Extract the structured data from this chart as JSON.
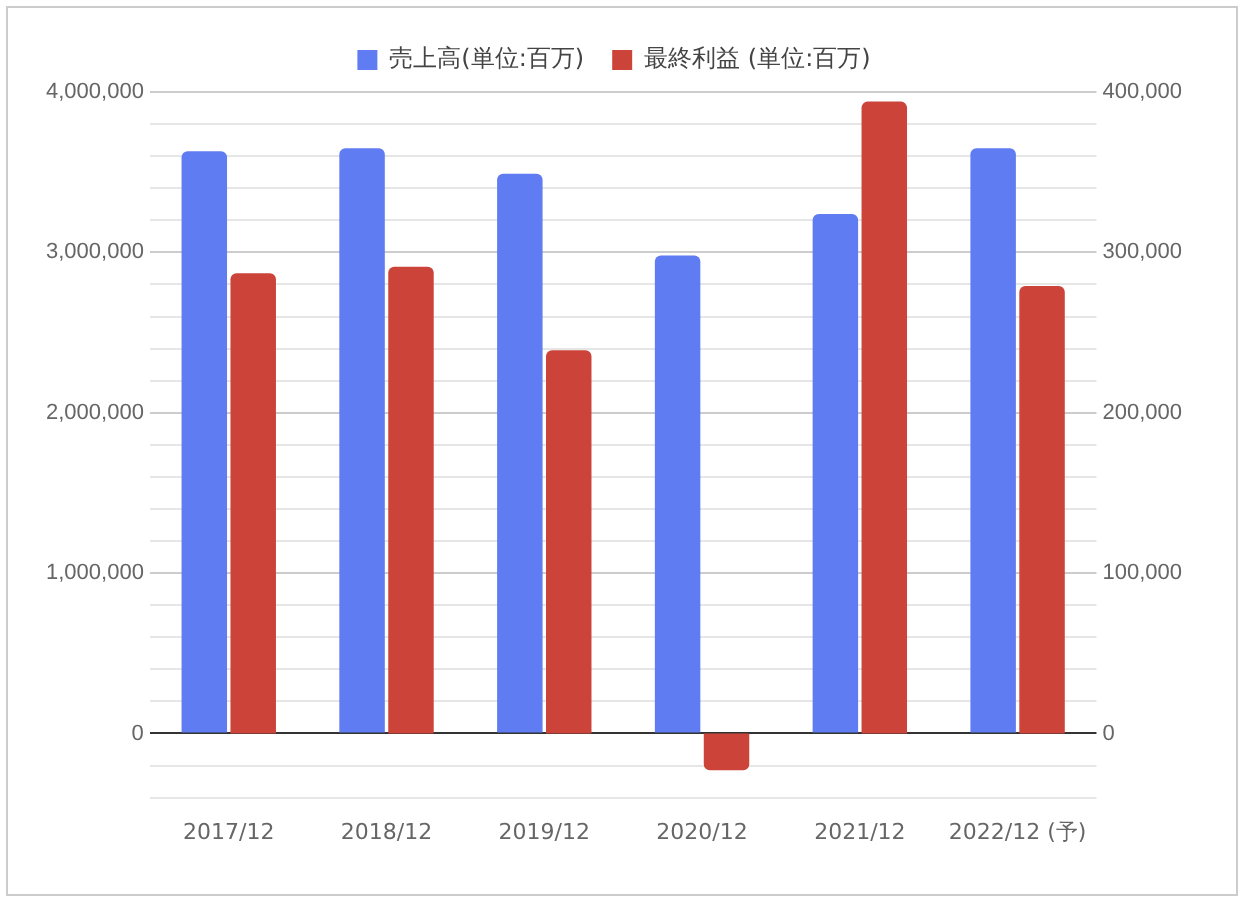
{
  "chart_data": {
    "type": "bar",
    "categories": [
      "2017/12",
      "2018/12",
      "2019/12",
      "2020/12",
      "2021/12",
      "2022/12 (予)"
    ],
    "series": [
      {
        "name": "売上高(単位:百万)",
        "color": "#5f7cf2",
        "values": [
          3630000,
          3650000,
          3490000,
          2980000,
          3240000,
          3650000
        ]
      },
      {
        "name": "最終利益 (単位:百万)",
        "color": "#cc4439",
        "axis": "y2",
        "values": [
          287000,
          291000,
          239000,
          -23000,
          394000,
          279000
        ]
      }
    ],
    "ylim": [
      -400000,
      4000000
    ],
    "yticks": [
      {
        "value": -400000,
        "label": null
      },
      {
        "value": -200000,
        "label": null
      },
      {
        "value": 0,
        "label": "0"
      },
      {
        "value": 200000,
        "label": null
      },
      {
        "value": 400000,
        "label": null
      },
      {
        "value": 600000,
        "label": null
      },
      {
        "value": 800000,
        "label": null
      },
      {
        "value": 1000000,
        "label": "1,000,000"
      },
      {
        "value": 1200000,
        "label": null
      },
      {
        "value": 1400000,
        "label": null
      },
      {
        "value": 1600000,
        "label": null
      },
      {
        "value": 1800000,
        "label": null
      },
      {
        "value": 2000000,
        "label": "2,000,000"
      },
      {
        "value": 2200000,
        "label": null
      },
      {
        "value": 2400000,
        "label": null
      },
      {
        "value": 2600000,
        "label": null
      },
      {
        "value": 2800000,
        "label": null
      },
      {
        "value": 3000000,
        "label": "3,000,000"
      },
      {
        "value": 3200000,
        "label": null
      },
      {
        "value": 3400000,
        "label": null
      },
      {
        "value": 3600000,
        "label": null
      },
      {
        "value": 3800000,
        "label": null
      },
      {
        "value": 4000000,
        "label": "4,000,000"
      }
    ],
    "y2lim": [
      -40000,
      400000
    ],
    "y2ticks": [
      {
        "value": 0,
        "label": "0"
      },
      {
        "value": 100000,
        "label": "100,000"
      },
      {
        "value": 200000,
        "label": "200,000"
      },
      {
        "value": 300000,
        "label": "300,000"
      },
      {
        "value": 400000,
        "label": "400,000"
      }
    ],
    "grid": "y",
    "legend": "top"
  }
}
